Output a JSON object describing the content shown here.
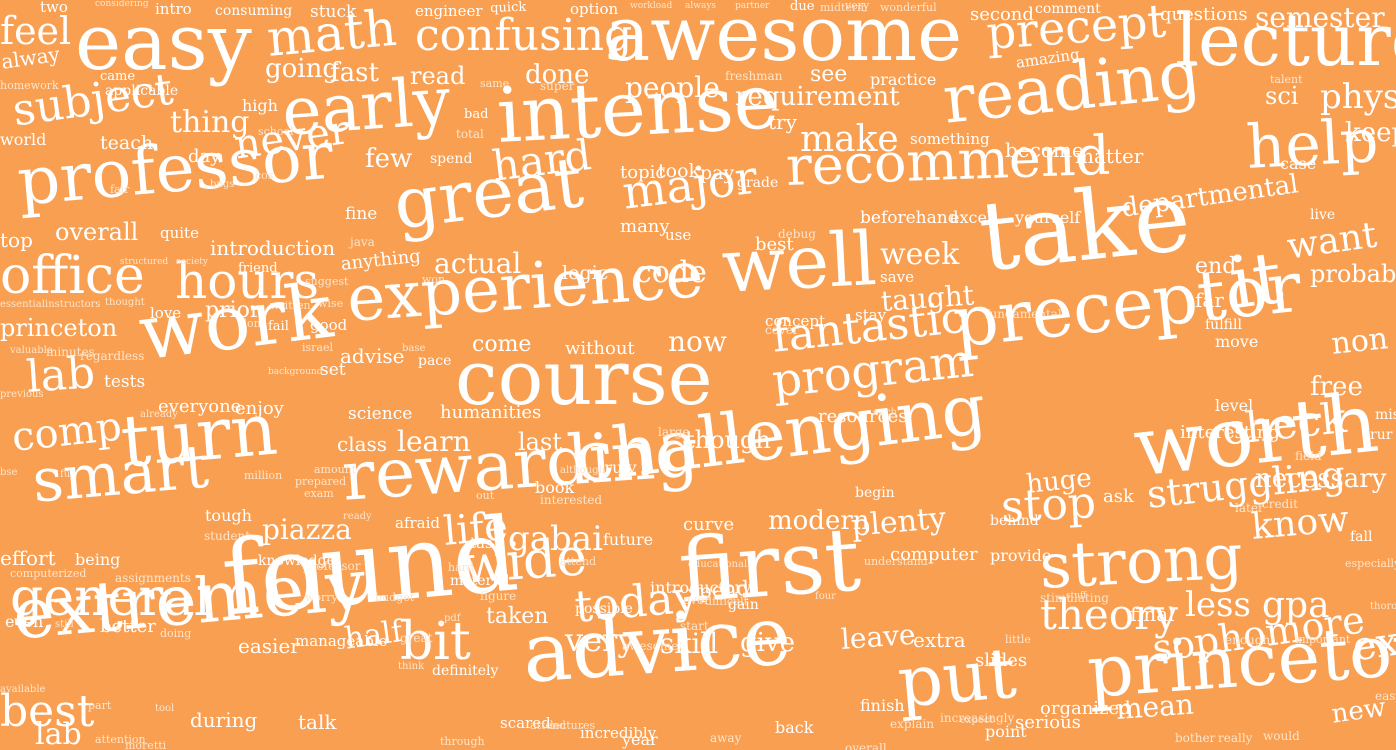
{
  "colors": {
    "background": "#F99F51",
    "word": "#FFFFFF",
    "small_word": "#FDE5CC"
  },
  "words": [
    "two",
    "considering",
    "intro",
    "consuming",
    "stuck",
    "engineer",
    "quick",
    "option",
    "workload",
    "always",
    "partner",
    "due",
    "midterm",
    "very",
    "wonderful",
    "second",
    "comment",
    "questions",
    "semester",
    "feel",
    "easy",
    "math",
    "confusing",
    "awesome",
    "precept",
    "lecture",
    "alway",
    "came",
    "going",
    "fast",
    "read",
    "done",
    "people",
    "see",
    "practice",
    "amazing",
    "reading",
    "homework",
    "applicable",
    "same",
    "super",
    "freshman",
    "requirement",
    "physics",
    "sci",
    "talent",
    "keep",
    "subject",
    "thing",
    "early",
    "intense",
    "try",
    "make",
    "help",
    "world",
    "teach",
    "high",
    "school",
    "day",
    "never",
    "few",
    "bad",
    "total",
    "something",
    "become",
    "matter",
    "case",
    "professor",
    "cos",
    "spend",
    "hard",
    "topic",
    "took",
    "pay",
    "grade",
    "recommend",
    "great",
    "major",
    "fair",
    "bugs",
    "fine",
    "overall",
    "quite",
    "java",
    "beforehand",
    "excel",
    "yourself",
    "departmental",
    "live",
    "top",
    "introduction",
    "many",
    "use",
    "best",
    "debug",
    "well",
    "week",
    "take",
    "it",
    "want",
    "probably",
    "office",
    "hours",
    "anything",
    "actual",
    "logic",
    "code",
    "end",
    "structured",
    "society",
    "friend",
    "suggest",
    "won",
    "save",
    "taught",
    "far",
    "fulfill",
    "instructors",
    "essential",
    "thought",
    "experience",
    "fundamental",
    "princeton",
    "love",
    "prior",
    "written",
    "wise",
    "dont",
    "fail",
    "good",
    "stay",
    "concept",
    "cover",
    "work",
    "preceptor",
    "move",
    "come",
    "without",
    "now",
    "fantastic",
    "non",
    "valuable",
    "minutes",
    "regardless",
    "israel",
    "advise",
    "pace",
    "base",
    "set",
    "lab",
    "course",
    "program",
    "tests",
    "background",
    "free",
    "everyone",
    "enjoy",
    "science",
    "resources",
    "each",
    "level",
    "miss",
    "previous",
    "rur",
    "comp",
    "turn",
    "class",
    "learn",
    "last",
    "though",
    "rewarding",
    "challenging",
    "check",
    "interesting",
    "worth",
    "bse",
    "fun",
    "already",
    "humanities",
    "large",
    "field",
    "necessary",
    "smart",
    "amount",
    "exam",
    "tough",
    "piazza",
    "afraid",
    "prepared",
    "ready",
    "huge",
    "ask",
    "later",
    "credit",
    "million",
    "truly",
    "although",
    "book",
    "interested",
    "begin",
    "stop",
    "struggling",
    "know",
    "fall",
    "student",
    "effort",
    "being",
    "knowledge",
    "life",
    "gabai",
    "tas",
    "out",
    "curve",
    "modern",
    "plenty",
    "behind",
    "especially",
    "strong",
    "computerized",
    "assignments",
    "professor",
    "wide",
    "attend",
    "understand",
    "computer",
    "provide",
    "found",
    "general",
    "future",
    "hard",
    "material",
    "possible",
    "educational",
    "spend",
    "difficult",
    "start",
    "first",
    "gpa",
    "less",
    "worry",
    "budget",
    "figure",
    "four",
    "over",
    "gain",
    "introductory",
    "stimulating",
    "stuff",
    "extremely",
    "even",
    "better",
    "today",
    "taken",
    "pdf",
    "bit",
    "half",
    "very",
    "skill",
    "give",
    "theory",
    "final",
    "thoroughly",
    "still",
    "doing",
    "easier",
    "manageable",
    "great",
    "awesome",
    "leave",
    "extra",
    "little",
    "slides",
    "sophomore",
    "enough",
    "important",
    "tool",
    "definitely",
    "think",
    "advice",
    "put",
    "princeton",
    "excellent",
    "best",
    "available",
    "part",
    "during",
    "talk",
    "scared",
    "attend",
    "lectures",
    "incredibly",
    "year",
    "away",
    "back",
    "finish",
    "explain",
    "increasingly",
    "expect",
    "point",
    "serious",
    "organized",
    "mean",
    "bother",
    "really",
    "would",
    "easy",
    "new",
    "lab",
    "attention",
    "moretti",
    "through",
    "overall"
  ]
}
